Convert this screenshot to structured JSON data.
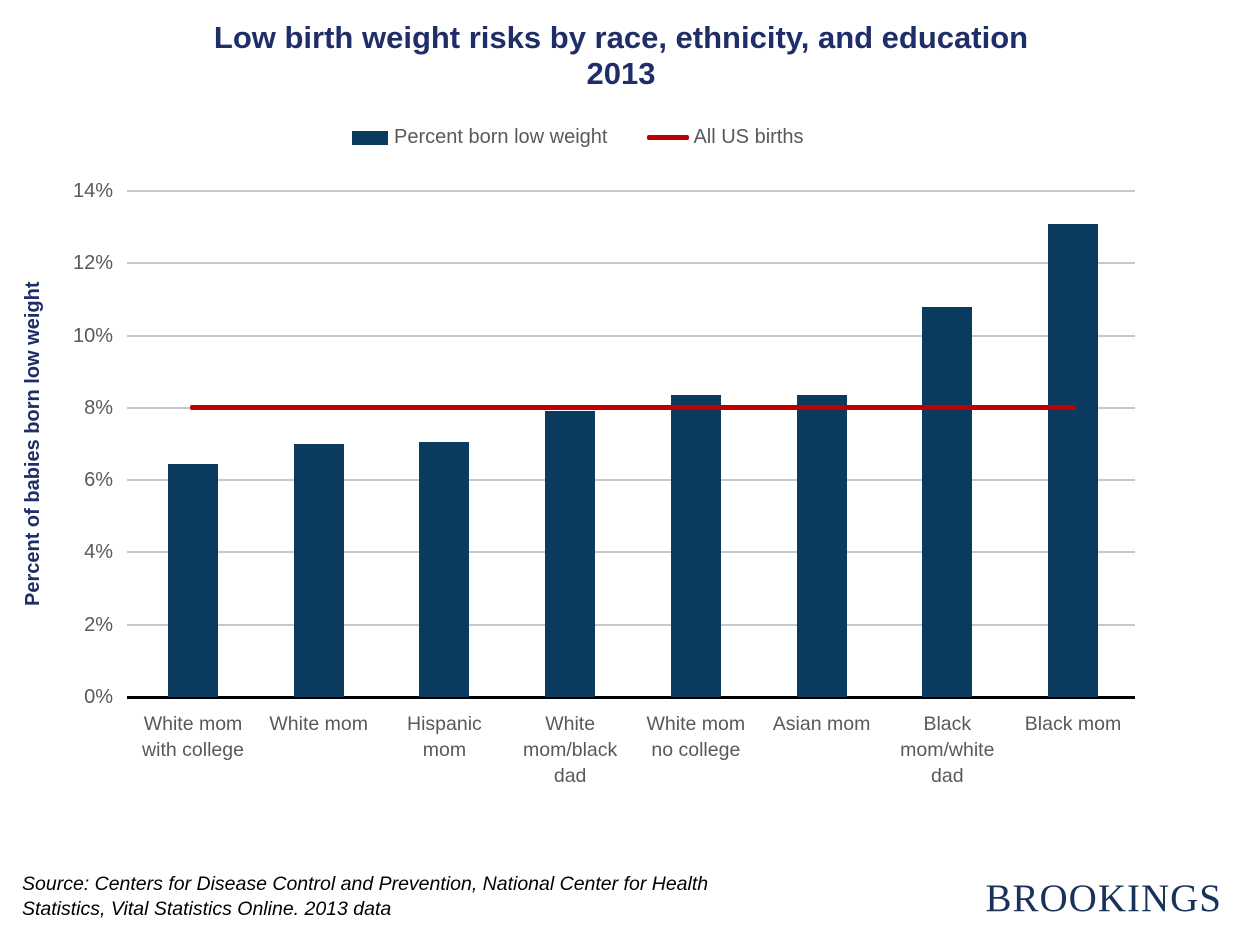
{
  "chart_data": {
    "type": "bar",
    "title": "Low birth weight risks by race, ethnicity, and education 2013",
    "ylabel": "Percent of babies born low weight",
    "xlabel": "",
    "ylim": [
      0,
      14
    ],
    "ytick_step": 2,
    "ytick_labels": [
      "0%",
      "2%",
      "4%",
      "6%",
      "8%",
      "10%",
      "12%",
      "14%"
    ],
    "grid": true,
    "legend_position": "top-center",
    "categories": [
      "White mom with college",
      "White mom",
      "Hispanic mom",
      "White mom/black dad",
      "White mom no college",
      "Asian mom",
      "Black mom/white dad",
      "Black mom"
    ],
    "category_lines": [
      [
        "White mom",
        "with college"
      ],
      [
        "White mom"
      ],
      [
        "Hispanic",
        "mom"
      ],
      [
        "White",
        "mom/black",
        "dad"
      ],
      [
        "White mom",
        "no college"
      ],
      [
        "Asian mom"
      ],
      [
        "Black",
        "mom/white",
        "dad"
      ],
      [
        "Black mom"
      ]
    ],
    "series": [
      {
        "name": "Percent born low weight",
        "values": [
          6.45,
          7.0,
          7.05,
          7.9,
          8.35,
          8.35,
          10.8,
          13.1
        ],
        "color": "#0B3A5F"
      }
    ],
    "reference_line": {
      "name": "All US births",
      "value": 8.0,
      "color": "#C00000"
    }
  },
  "legend": {
    "bar_label": "Percent born low weight",
    "line_label": "All US births"
  },
  "footer": {
    "source": "Source: Centers for Disease Control and Prevention, National Center for Health Statistics, Vital Statistics Online. 2013 data",
    "logo": "BROOKINGS"
  },
  "colors": {
    "title": "#1F2E68",
    "bar": "#0B3A5F",
    "reference_line": "#C00000",
    "axis_text": "#595959",
    "gridline": "#C8C8C8",
    "axis_line": "#000000",
    "logo": "#19325B"
  }
}
